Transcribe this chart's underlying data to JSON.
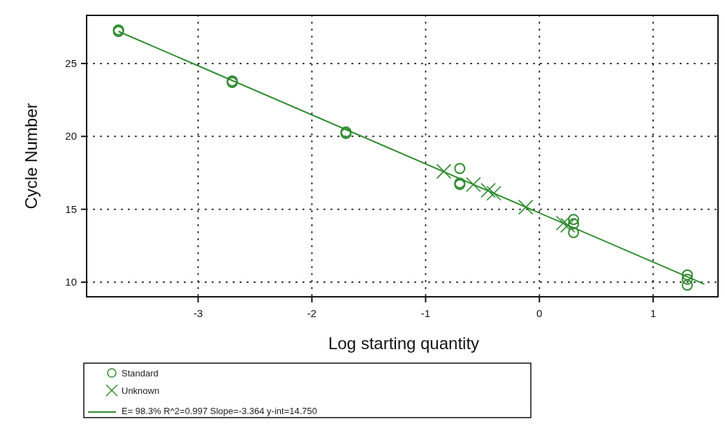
{
  "chart_data": {
    "type": "scatter",
    "xlabel": "Log starting quantity",
    "ylabel": "Cycle Number",
    "xlim": [
      -3.98,
      1.57
    ],
    "ylim": [
      9,
      28.3
    ],
    "xticks": [
      -3,
      -2,
      -1,
      0,
      1
    ],
    "yticks": [
      10,
      15,
      20,
      25
    ],
    "grid": true,
    "legend": "bottom left",
    "series": [
      {
        "name": "Standard",
        "color": "#2e8b2e",
        "marker": "circle",
        "x": [
          -3.7,
          -3.7,
          -2.7,
          -2.7,
          -1.7,
          -1.7,
          -0.7,
          -0.7,
          -0.7,
          0.3,
          0.3,
          0.3,
          1.3,
          1.3,
          1.3
        ],
        "values": [
          27.3,
          27.2,
          23.8,
          23.7,
          20.3,
          20.2,
          17.8,
          16.8,
          16.7,
          14.3,
          14.0,
          13.4,
          10.5,
          10.2,
          9.8
        ]
      },
      {
        "name": "Unknown",
        "color": "#2e8b2e",
        "marker": "cross",
        "x": [
          -0.84,
          -0.58,
          -0.45,
          -0.4,
          -0.12,
          0.21,
          0.25
        ],
        "values": [
          17.6,
          16.7,
          16.3,
          16.1,
          15.15,
          14.05,
          13.9
        ]
      },
      {
        "name": "E= 98.3% R^2=0.997  Slope=-3.364 y-int=14.750",
        "type": "line",
        "color": "#2e8b2e",
        "marker": "none",
        "line_style": "solid",
        "x": [
          -3.7,
          1.45
        ],
        "values": [
          27.2,
          9.87
        ]
      }
    ]
  }
}
